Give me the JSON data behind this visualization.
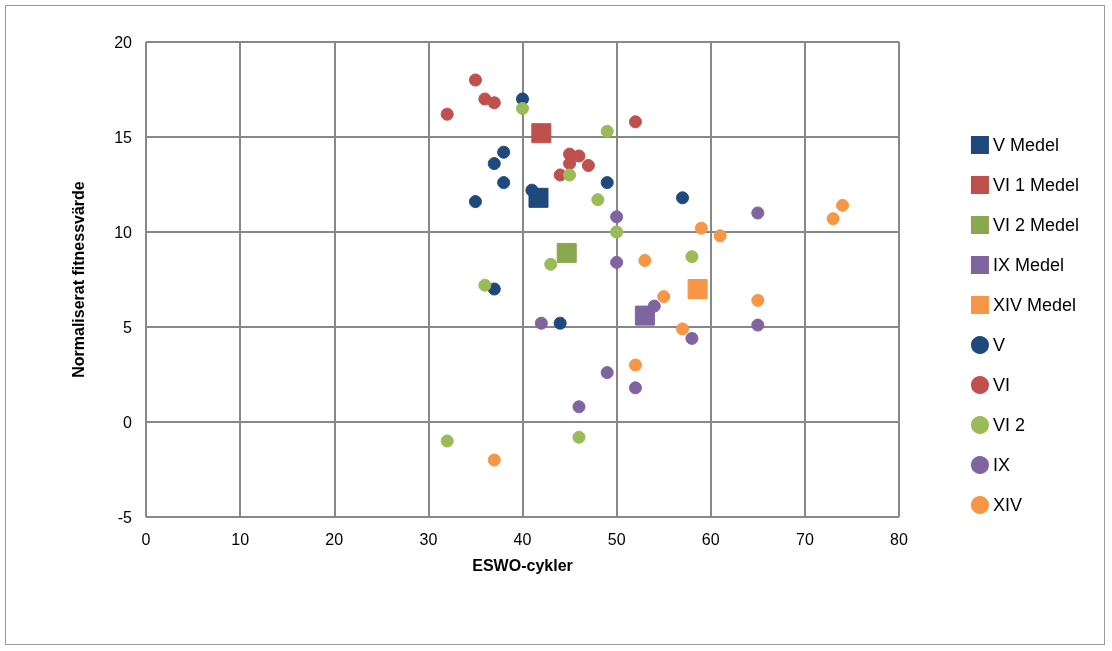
{
  "chart_data": {
    "type": "scatter",
    "xlabel": "ESWO-cykler",
    "ylabel": "Normaliserat fitnessvärde",
    "xlim": [
      0,
      80
    ],
    "xticks": [
      0,
      10,
      20,
      30,
      40,
      50,
      60,
      70,
      80
    ],
    "ylim": [
      -5,
      20
    ],
    "yticks": [
      -5,
      0,
      5,
      10,
      15,
      20
    ],
    "grid": true,
    "legend": "right",
    "series": [
      {
        "name": "V Medel",
        "color": "#1f497d",
        "marker": "square",
        "x": [
          41.7
        ],
        "values": [
          11.8
        ]
      },
      {
        "name": "VI 1 Medel",
        "color": "#c0504d",
        "marker": "square",
        "x": [
          42
        ],
        "values": [
          15.2
        ]
      },
      {
        "name": "VI 2 Medel",
        "color": "#8aa84f",
        "marker": "square",
        "x": [
          44.7
        ],
        "values": [
          8.9
        ]
      },
      {
        "name": "IX Medel",
        "color": "#8064a2",
        "marker": "square",
        "x": [
          53
        ],
        "values": [
          5.6
        ]
      },
      {
        "name": "XIV Medel",
        "color": "#f79646",
        "marker": "square",
        "x": [
          58.6
        ],
        "values": [
          7
        ]
      },
      {
        "name": "V",
        "color": "#1f497d",
        "marker": "circle",
        "x": [
          40,
          37,
          38,
          38,
          35,
          41,
          49,
          57,
          37,
          44
        ],
        "values": [
          17,
          13.6,
          14.2,
          12.6,
          11.6,
          12.2,
          12.6,
          11.8,
          7,
          5.2
        ]
      },
      {
        "name": "VI",
        "color": "#c0504d",
        "marker": "circle",
        "x": [
          32,
          35,
          36,
          37,
          52,
          45,
          46,
          45,
          47,
          44
        ],
        "values": [
          16.2,
          18,
          17,
          16.8,
          15.8,
          14.1,
          14,
          13.6,
          13.5,
          13
        ]
      },
      {
        "name": "VI 2",
        "color": "#9bbb59",
        "marker": "circle",
        "x": [
          40,
          49,
          45,
          48,
          50,
          43,
          58,
          36,
          32,
          46
        ],
        "values": [
          16.5,
          15.3,
          13,
          11.7,
          10,
          8.3,
          8.7,
          7.2,
          -1,
          -0.8
        ]
      },
      {
        "name": "IX",
        "color": "#8064a2",
        "marker": "circle",
        "x": [
          50,
          50,
          65,
          54,
          58,
          65,
          42,
          49,
          52,
          46
        ],
        "values": [
          10.8,
          8.4,
          11,
          6.1,
          4.4,
          5.1,
          5.2,
          2.6,
          1.8,
          0.8
        ]
      },
      {
        "name": "XIV",
        "color": "#f79646",
        "marker": "circle",
        "x": [
          73,
          74,
          59,
          61,
          53,
          55,
          57,
          65,
          52,
          37
        ],
        "values": [
          10.7,
          11.4,
          10.2,
          9.8,
          8.5,
          6.6,
          4.9,
          6.4,
          3,
          -2
        ]
      }
    ]
  }
}
